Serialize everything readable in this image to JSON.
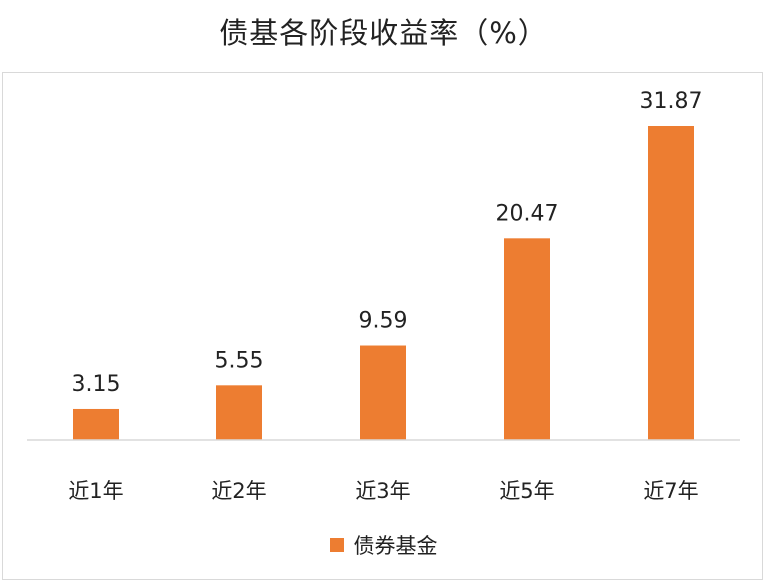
{
  "chart_data": {
    "type": "bar",
    "title": "债基各阶段收益率（%）",
    "categories": [
      "近1年",
      "近2年",
      "近3年",
      "近5年",
      "近7年"
    ],
    "series": [
      {
        "name": "债券基金",
        "values": [
          3.15,
          5.55,
          9.59,
          20.47,
          31.87
        ]
      }
    ],
    "value_labels": [
      "3.15",
      "5.55",
      "9.59",
      "20.47",
      "31.87"
    ],
    "ylim": [
      0,
      31.87
    ],
    "grid": false,
    "legend_position": "bottom",
    "colors": {
      "bar": "#ED7D31",
      "axis": "#d9d9d9",
      "text": "#222222"
    }
  }
}
